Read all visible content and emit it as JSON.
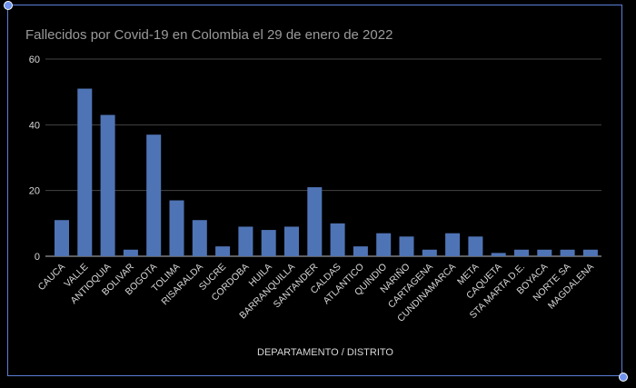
{
  "chart_data": {
    "type": "bar",
    "title": "Fallecidos por Covid-19 en Colombia el 29 de enero de 2022",
    "xlabel": "DEPARTAMENTO / DISTRITO",
    "ylabel": "",
    "ylim": [
      0,
      60
    ],
    "yticks": [
      "0",
      "20",
      "40",
      "60"
    ],
    "grid": true,
    "legend": "none",
    "bar_color": "#4f74b5",
    "background": "#000000",
    "categories": [
      "CAUCA",
      "VALLE",
      "ANTIOQUIA",
      "BOLIVAR",
      "BOGOTA",
      "TOLIMA",
      "RISARALDA",
      "SUCRE",
      "CORDOBA",
      "HUILA",
      "BARRANQUILLA",
      "SANTANDER",
      "CALDAS",
      "ATLANTICO",
      "QUINDIO",
      "NARIÑO",
      "CARTAGENA",
      "CUNDINAMARCA",
      "META",
      "CAQUETA",
      "STA MARTA D.E.",
      "BOYACA",
      "NORTE SA",
      "MAGDALENA"
    ],
    "values": [
      11,
      51,
      43,
      2,
      37,
      17,
      11,
      3,
      9,
      8,
      9,
      21,
      10,
      3,
      7,
      6,
      2,
      7,
      6,
      1,
      2,
      2,
      2,
      2
    ]
  }
}
